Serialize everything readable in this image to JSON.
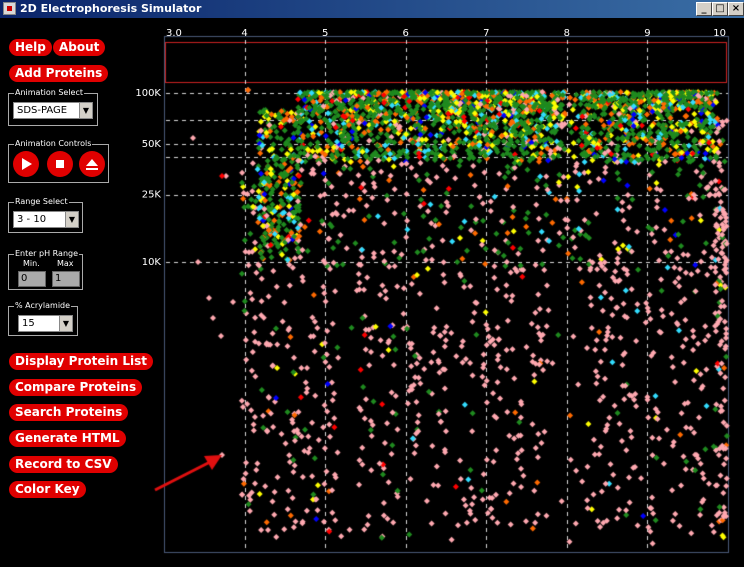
{
  "window": {
    "title": "2D Electrophoresis Simulator",
    "min_label": "_",
    "max_label": "□",
    "close_label": "×"
  },
  "buttons": {
    "help": "Help",
    "about": "About",
    "add_proteins": "Add Proteins",
    "display_list": "Display Protein List",
    "compare": "Compare Proteins",
    "search": "Search Proteins",
    "generate_html": "Generate HTML",
    "record_csv": "Record to CSV",
    "color_key": "Color Key"
  },
  "animation_select": {
    "label": "Animation Select",
    "value": "SDS-PAGE"
  },
  "animation_controls": {
    "label": "Animation Controls"
  },
  "range_select": {
    "label": "Range Select",
    "value": "3 - 10"
  },
  "ph_range": {
    "label": "Enter pH Range",
    "min_label": "Min.",
    "max_label": "Max",
    "min_value": "0",
    "max_value": "1"
  },
  "acrylamide": {
    "label": "% Acrylamide",
    "value": "15"
  },
  "gel": {
    "ph_ticks": [
      {
        "v": 3,
        "label": "3.0"
      },
      {
        "v": 4,
        "label": "4"
      },
      {
        "v": 5,
        "label": "5"
      },
      {
        "v": 6,
        "label": "6"
      },
      {
        "v": 7,
        "label": "7"
      },
      {
        "v": 8,
        "label": "8"
      },
      {
        "v": 9,
        "label": "9"
      },
      {
        "v": 10,
        "label": "10"
      }
    ],
    "mw_markers": [
      {
        "label": "100K",
        "kda": 100
      },
      {
        "label": "50K",
        "kda": 50
      },
      {
        "label": "25K",
        "kda": 25
      },
      {
        "label": "10K",
        "kda": 10
      }
    ],
    "colors": {
      "background": "#000000",
      "frame": "#4a5a78",
      "sample_well": "#cc2222",
      "gridline": "#ffffff",
      "arrow": "#e01010",
      "spots": [
        "#ffa8b0",
        "#1f8a1f",
        "#ff6a00",
        "#ffff00",
        "#33ddff",
        "#ff0000",
        "#0000ff",
        "#ffffff"
      ]
    }
  }
}
